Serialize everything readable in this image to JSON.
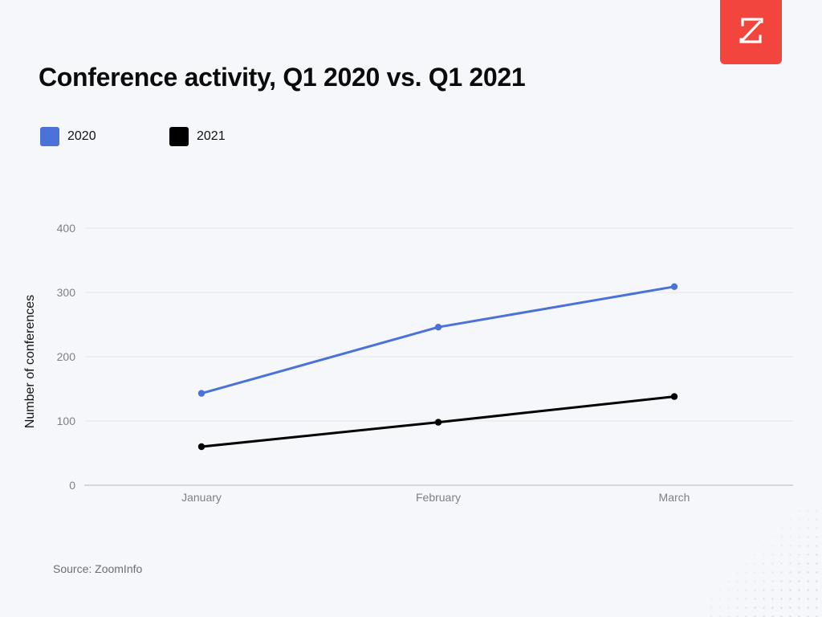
{
  "brand": {
    "logo_icon": "zoominfo-z-logo-icon",
    "color": "#f2453d"
  },
  "source": "Source: ZoomInfo",
  "chart_data": {
    "type": "line",
    "title": "Conference activity, Q1 2020 vs. Q1 2021",
    "xlabel": "",
    "ylabel": "Number of conferences",
    "categories": [
      "January",
      "February",
      "March"
    ],
    "series": [
      {
        "name": "2020",
        "color": "#4a72d9",
        "values": [
          143,
          246,
          309
        ]
      },
      {
        "name": "2021",
        "color": "#000000",
        "values": [
          60,
          98,
          138
        ]
      }
    ],
    "ylim": [
      0,
      400
    ],
    "yticks": [
      0,
      100,
      200,
      300,
      400
    ],
    "grid": true,
    "legend": "top-left"
  }
}
